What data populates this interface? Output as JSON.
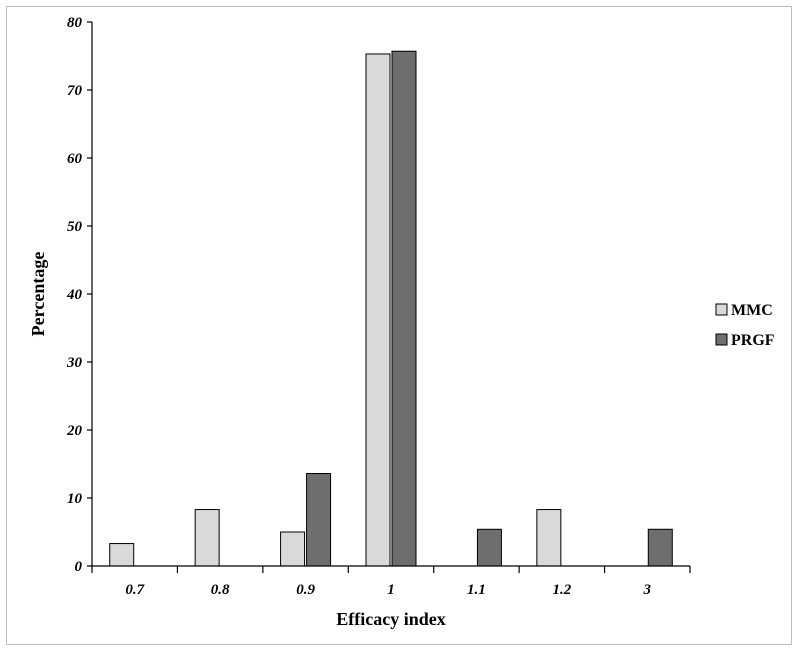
{
  "chart_data": {
    "type": "bar",
    "categories": [
      "0.7",
      "0.8",
      "0.9",
      "1",
      "1.1",
      "1.2",
      "3"
    ],
    "series": [
      {
        "name": "MMC",
        "color": "#d9d9d9",
        "values": [
          3.3,
          8.3,
          5.0,
          75.3,
          0,
          8.3,
          0
        ]
      },
      {
        "name": "PRGF",
        "color": "#6e6e6e",
        "values": [
          0,
          0,
          13.6,
          75.7,
          5.4,
          0,
          5.4
        ]
      }
    ],
    "xlabel": "Efficacy index",
    "ylabel": "Percentage",
    "ylim": [
      0,
      80
    ],
    "yticks": [
      0,
      10,
      20,
      30,
      40,
      50,
      60,
      70,
      80
    ],
    "grid": false,
    "legend_position": "right"
  }
}
